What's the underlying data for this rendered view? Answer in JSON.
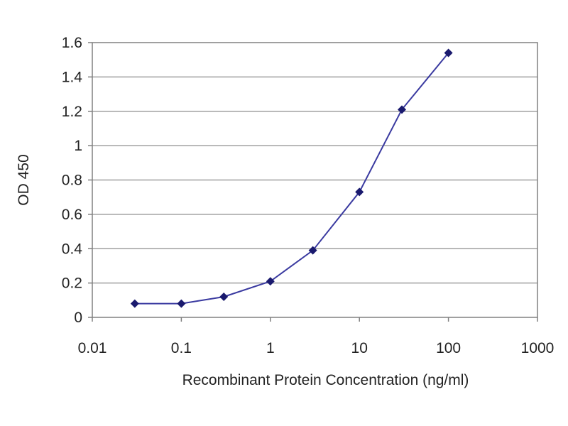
{
  "chart_data": {
    "type": "line",
    "title": "",
    "xlabel": "Recombinant Protein Concentration (ng/ml)",
    "ylabel": "OD 450",
    "x_scale": "log",
    "xlim": [
      0.01,
      1000
    ],
    "ylim": [
      0,
      1.6
    ],
    "x_ticks": [
      "0.01",
      "0.1",
      "1",
      "10",
      "100",
      "1000"
    ],
    "y_ticks": [
      "0",
      "0.2",
      "0.4",
      "0.6",
      "0.8",
      "1",
      "1.2",
      "1.4",
      "1.6"
    ],
    "grid": "horizontal",
    "legend": "none",
    "series": [
      {
        "x": [
          0.03,
          0.1,
          0.3,
          1,
          3,
          10,
          30,
          100
        ],
        "y": [
          0.08,
          0.08,
          0.12,
          0.21,
          0.39,
          0.73,
          1.21,
          1.54
        ]
      }
    ],
    "colors": {
      "line": "#3a3aa0",
      "marker": "#1a1a6e",
      "grid": "#a0a0a0",
      "frame": "#808080"
    }
  }
}
